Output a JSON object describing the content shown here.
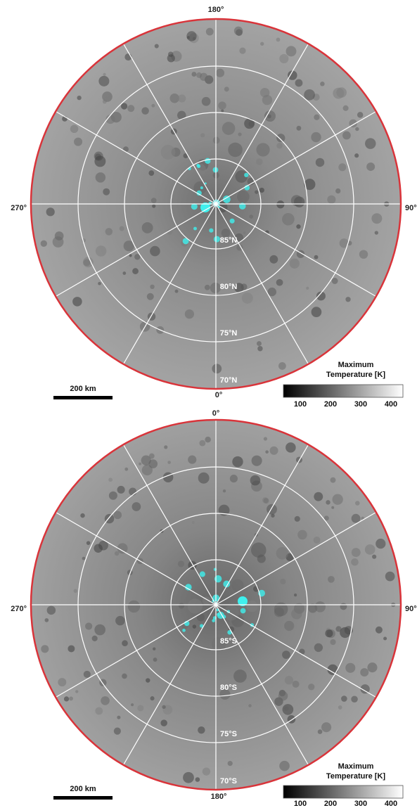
{
  "panels": [
    {
      "longitude_labels": {
        "top": "180°",
        "left": "270°",
        "right": "90°",
        "bottom": "0°"
      },
      "latitude_labels": [
        "85°N",
        "80°N",
        "75°N",
        "70°N"
      ],
      "scale_bar": "200 km",
      "colorbar": {
        "title_lines": [
          "Maximum",
          "Temperature [K]"
        ],
        "ticks": [
          100,
          200,
          300,
          400
        ]
      }
    },
    {
      "longitude_labels": {
        "top": "0°",
        "left": "270°",
        "right": "90°",
        "bottom": "180°"
      },
      "latitude_labels": [
        "85°S",
        "80°S",
        "75°S",
        "70°S"
      ],
      "scale_bar": "200 km",
      "colorbar": {
        "title_lines": [
          "Maximum",
          "Temperature [K]"
        ],
        "ticks": [
          100,
          200,
          300,
          400
        ]
      }
    }
  ]
}
